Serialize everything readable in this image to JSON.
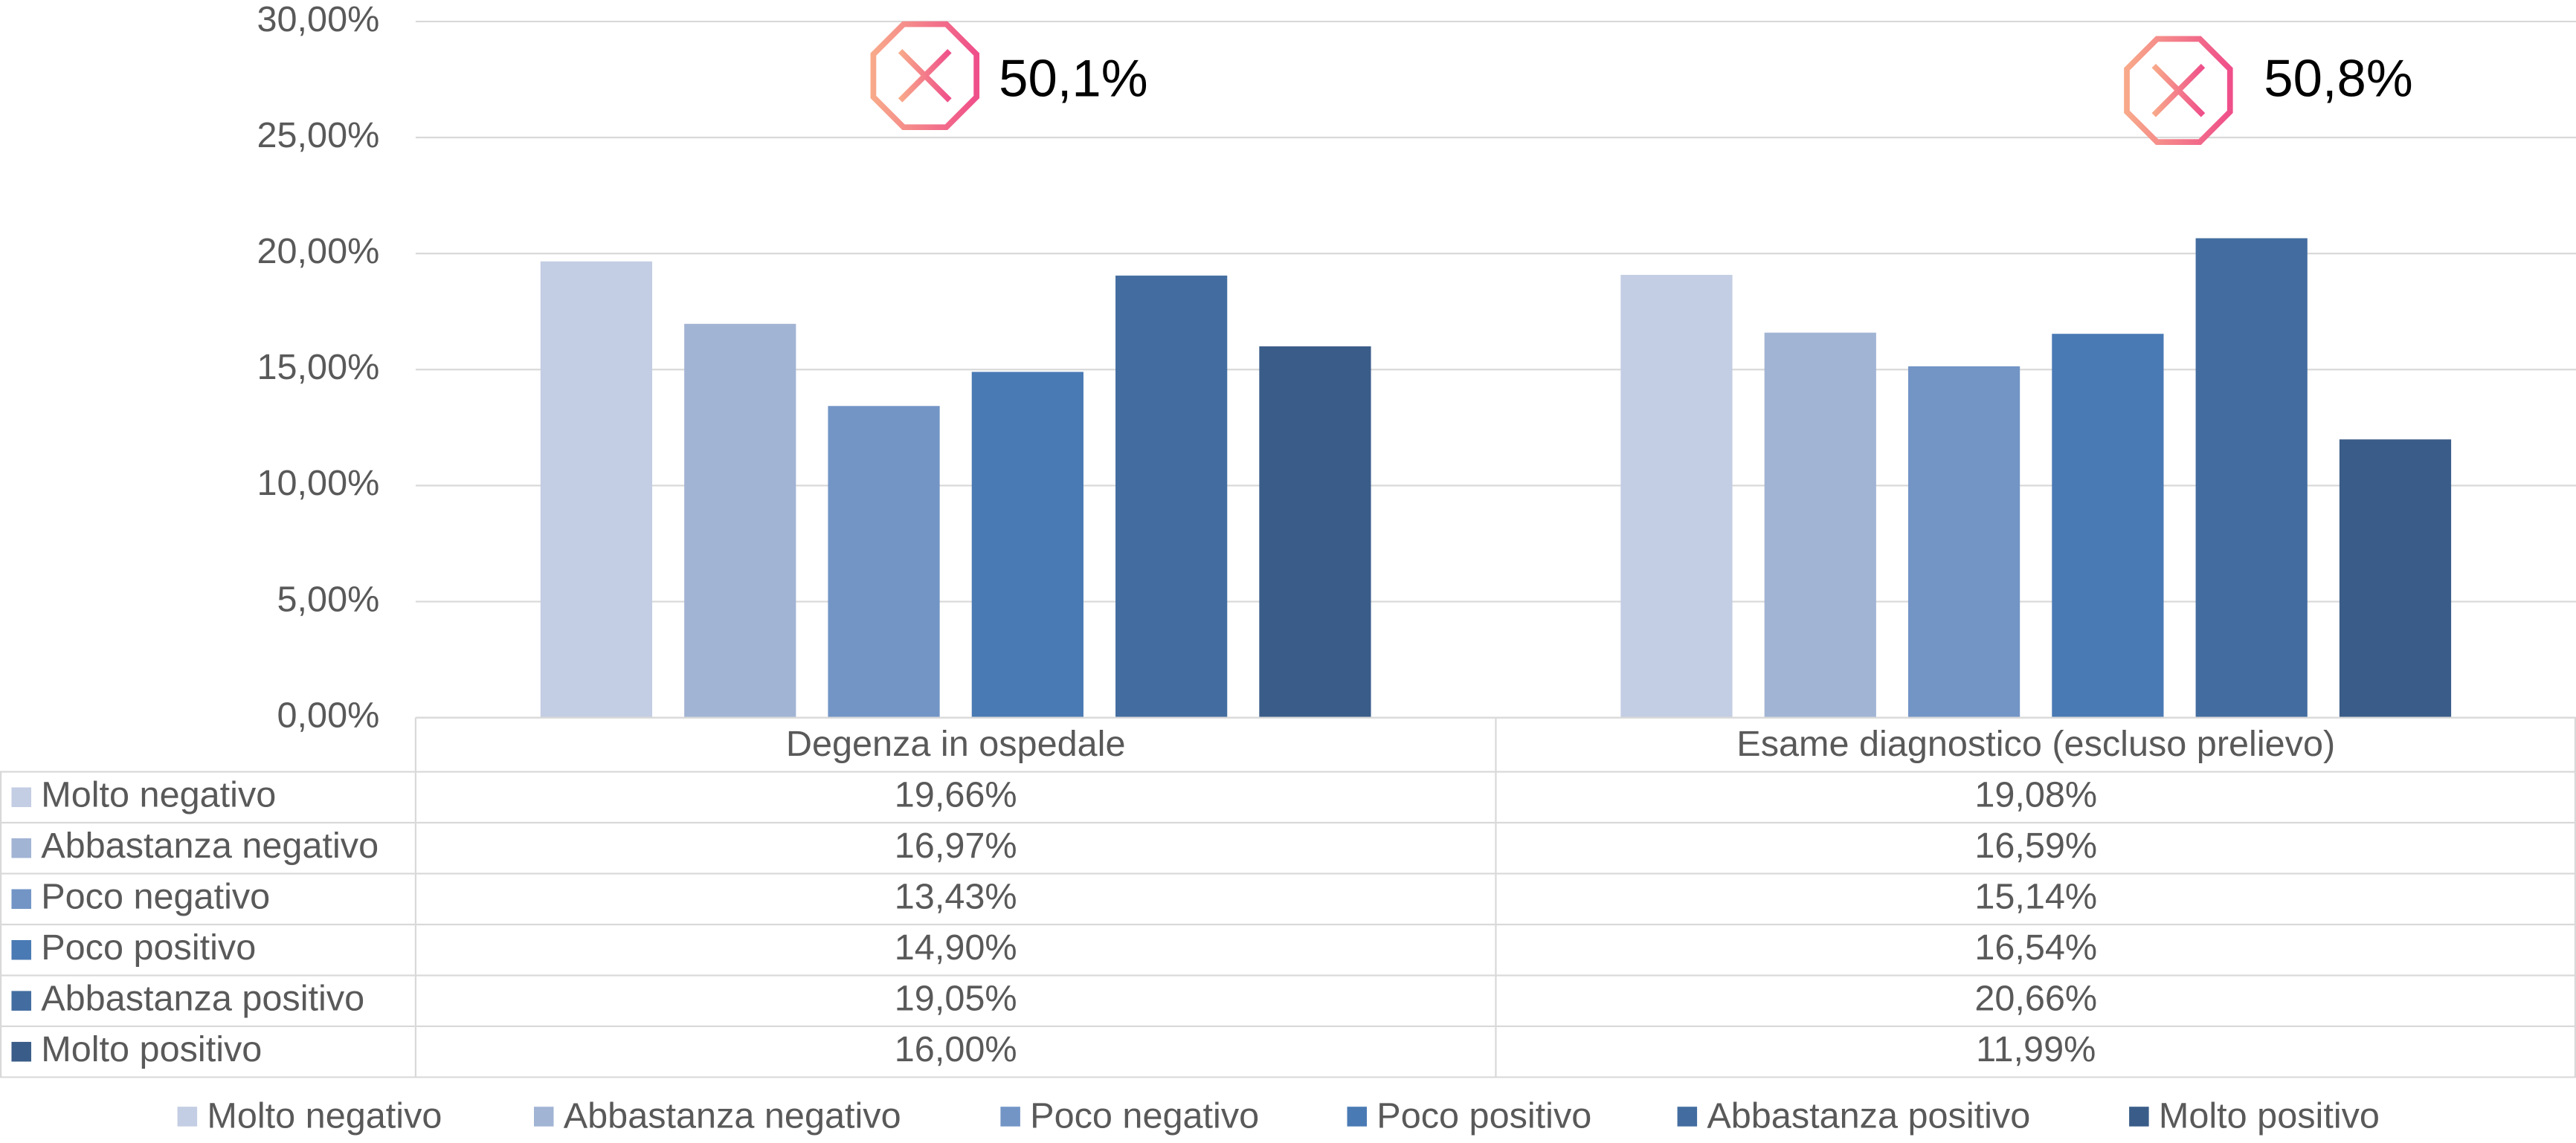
{
  "chart_data": {
    "type": "bar",
    "categories": [
      "Degenza in ospedale",
      "Esame diagnostico (escluso prelievo)"
    ],
    "series": [
      {
        "name": "Molto negativo",
        "color": "#c3cde3",
        "values": [
          19.66,
          19.08
        ],
        "value_labels": [
          "19,66%",
          "19,08%"
        ]
      },
      {
        "name": "Abbastanza negativo",
        "color": "#a2b4d4",
        "values": [
          16.97,
          16.59
        ],
        "value_labels": [
          "16,97%",
          "16,59%"
        ]
      },
      {
        "name": "Poco negativo",
        "color": "#7395c6",
        "values": [
          13.43,
          15.14
        ],
        "value_labels": [
          "13,43%",
          "15,14%"
        ]
      },
      {
        "name": "Poco positivo",
        "color": "#4a7ab4",
        "values": [
          14.9,
          16.54
        ],
        "value_labels": [
          "14,90%",
          "16,54%"
        ]
      },
      {
        "name": "Abbastanza positivo",
        "color": "#436da0",
        "values": [
          19.05,
          20.66
        ],
        "value_labels": [
          "19,05%",
          "20,66%"
        ]
      },
      {
        "name": "Molto positivo",
        "color": "#3a5c88",
        "values": [
          16.0,
          11.99
        ],
        "value_labels": [
          "16,00%",
          "11,99%"
        ]
      }
    ],
    "ylim": [
      0,
      30
    ],
    "yticks": [
      {
        "value": 0,
        "label": "0,00%"
      },
      {
        "value": 5,
        "label": "5,00%"
      },
      {
        "value": 10,
        "label": "10,00%"
      },
      {
        "value": 15,
        "label": "15,00%"
      },
      {
        "value": 20,
        "label": "20,00%"
      },
      {
        "value": 25,
        "label": "25,00%"
      },
      {
        "value": 30,
        "label": "30,00%"
      }
    ],
    "grid": true,
    "annotations": [
      "50,1%",
      "50,8%"
    ]
  }
}
